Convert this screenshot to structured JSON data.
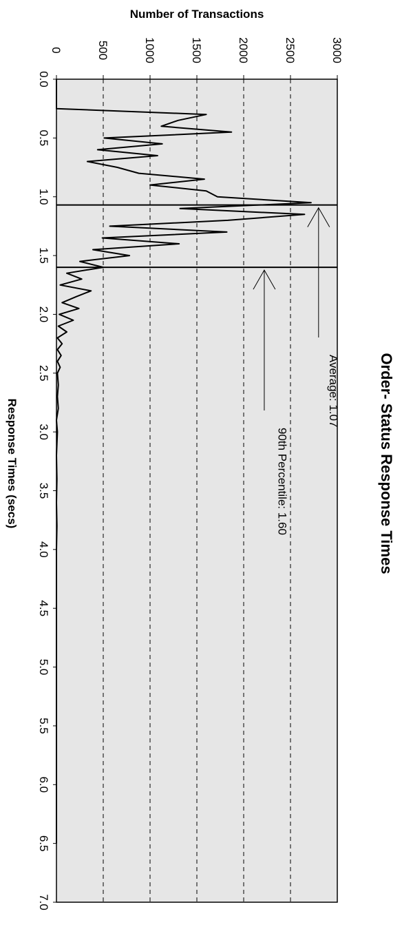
{
  "chart_data": {
    "type": "line",
    "title": "Order- Status Response Times",
    "xlabel": "Response Times (secs)",
    "ylabel": "Number of Transactions",
    "xlim": [
      0,
      7
    ],
    "ylim": [
      0,
      3000
    ],
    "x_ticks": [
      "0.0",
      "0.5",
      "1.0",
      "1.5",
      "2.0",
      "2.5",
      "3.0",
      "3.5",
      "4.0",
      "4.5",
      "5.0",
      "5.5",
      "6.0",
      "6.5",
      "7.0"
    ],
    "y_ticks": [
      "0",
      "500",
      "1000",
      "1500",
      "2000",
      "2500",
      "3000"
    ],
    "grid": "dashed at y ticks",
    "plot_background": "#e6e6e6",
    "series": [
      {
        "x": [
          0.0,
          0.25,
          0.3,
          0.35,
          0.4,
          0.45,
          0.5,
          0.55,
          0.6,
          0.65,
          0.7,
          0.75,
          0.8,
          0.85,
          0.9,
          0.95,
          1.0,
          1.05,
          1.1,
          1.15,
          1.2,
          1.25,
          1.3,
          1.35,
          1.4,
          1.45,
          1.5,
          1.55,
          1.6,
          1.65,
          1.7,
          1.75,
          1.8,
          1.85,
          1.9,
          1.95,
          2.0,
          2.05,
          2.1,
          2.15,
          2.2,
          2.25,
          2.3,
          2.35,
          2.4,
          2.45,
          2.5,
          2.6,
          2.7,
          2.8,
          2.9,
          3.0,
          3.2,
          3.4,
          3.6,
          3.8,
          4.0,
          4.5,
          5.0,
          5.5,
          6.0,
          6.5
        ],
        "y": [
          0,
          0,
          1600,
          1300,
          1120,
          1870,
          510,
          1130,
          440,
          1080,
          330,
          650,
          880,
          1580,
          1000,
          1600,
          1720,
          2720,
          1320,
          2650,
          1830,
          570,
          1820,
          490,
          1310,
          390,
          780,
          250,
          500,
          110,
          270,
          40,
          370,
          210,
          60,
          240,
          30,
          180,
          20,
          110,
          10,
          60,
          10,
          50,
          10,
          40,
          10,
          20,
          10,
          20,
          0,
          10,
          0,
          5,
          0,
          5,
          0,
          0,
          0,
          0,
          0,
          0
        ]
      }
    ],
    "annotations": [
      {
        "label": "Average: 1.07",
        "x": 1.07
      },
      {
        "label": "90th Percentile: 1.60",
        "x": 1.6
      }
    ],
    "colors": {
      "line": "#000000",
      "plot_background": "#e6e6e6",
      "grid": "#000000"
    }
  }
}
